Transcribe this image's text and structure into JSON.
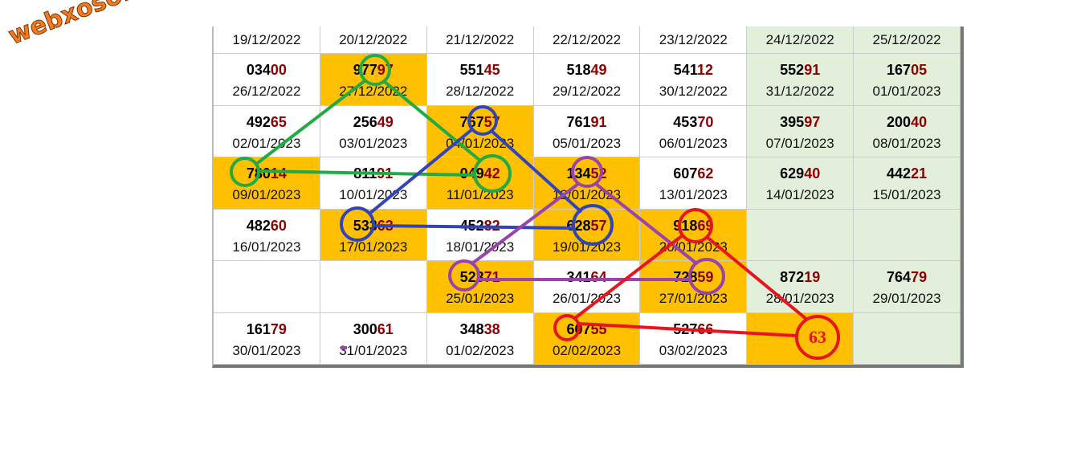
{
  "watermark": "webxoso.net",
  "table": {
    "rows": [
      [
        {
          "date": "19/12/2022"
        },
        {
          "date": "20/12/2022"
        },
        {
          "date": "21/12/2022"
        },
        {
          "date": "22/12/2022"
        },
        {
          "date": "23/12/2022"
        },
        {
          "date": "24/12/2022",
          "fill": "#e2efda"
        },
        {
          "date": "25/12/2022",
          "fill": "#e2efda"
        }
      ],
      [
        {
          "head": "034",
          "tail": "00",
          "date": "26/12/2022"
        },
        {
          "head": "977",
          "tail": "97",
          "date": "27/12/2022",
          "fill": "#ffc000"
        },
        {
          "head": "551",
          "tail": "45",
          "date": "28/12/2022"
        },
        {
          "head": "518",
          "tail": "49",
          "date": "29/12/2022"
        },
        {
          "head": "541",
          "tail": "12",
          "date": "30/12/2022"
        },
        {
          "head": "552",
          "tail": "91",
          "date": "31/12/2022",
          "fill": "#e2efda"
        },
        {
          "head": "167",
          "tail": "05",
          "date": "01/01/2023",
          "fill": "#e2efda"
        }
      ],
      [
        {
          "head": "492",
          "tail": "65",
          "date": "02/01/2023"
        },
        {
          "head": "256",
          "tail": "49",
          "date": "03/01/2023"
        },
        {
          "head": "767",
          "tail": "57",
          "date": "04/01/2023",
          "fill": "#ffc000"
        },
        {
          "head": "761",
          "tail": "91",
          "date": "05/01/2023"
        },
        {
          "head": "453",
          "tail": "70",
          "date": "06/01/2023"
        },
        {
          "head": "395",
          "tail": "97",
          "date": "07/01/2023",
          "fill": "#e2efda"
        },
        {
          "head": "200",
          "tail": "40",
          "date": "08/01/2023",
          "fill": "#e2efda"
        }
      ],
      [
        {
          "head": "780",
          "tail": "14",
          "date": "09/01/2023",
          "fill": "#ffc000"
        },
        {
          "head": "811",
          "tail": "91",
          "date": "10/01/2023"
        },
        {
          "head": "049",
          "tail": "42",
          "date": "11/01/2023",
          "fill": "#ffc000"
        },
        {
          "head": "134",
          "tail": "52",
          "date": "12/01/2023",
          "fill": "#ffc000"
        },
        {
          "head": "607",
          "tail": "62",
          "date": "13/01/2023"
        },
        {
          "head": "629",
          "tail": "40",
          "date": "14/01/2023",
          "fill": "#e2efda"
        },
        {
          "head": "442",
          "tail": "21",
          "date": "15/01/2023",
          "fill": "#e2efda"
        }
      ],
      [
        {
          "head": "482",
          "tail": "60",
          "date": "16/01/2023"
        },
        {
          "head": "533",
          "tail": "63",
          "date": "17/01/2023",
          "fill": "#ffc000"
        },
        {
          "head": "452",
          "tail": "82",
          "date": "18/01/2023"
        },
        {
          "head": "628",
          "tail": "57",
          "date": "19/01/2023",
          "fill": "#ffc000"
        },
        {
          "head": "918",
          "tail": "69",
          "date": "20/01/2023",
          "fill": "#ffc000"
        },
        {
          "fill": "#e2efda"
        },
        {
          "fill": "#e2efda"
        }
      ],
      [
        {},
        {},
        {
          "head": "523",
          "tail": "71",
          "date": "25/01/2023",
          "fill": "#ffc000"
        },
        {
          "head": "341",
          "tail": "64",
          "date": "26/01/2023"
        },
        {
          "head": "728",
          "tail": "59",
          "date": "27/01/2023",
          "fill": "#ffc000"
        },
        {
          "head": "872",
          "tail": "19",
          "date": "28/01/2023",
          "fill": "#e2efda"
        },
        {
          "head": "764",
          "tail": "79",
          "date": "29/01/2023",
          "fill": "#e2efda"
        }
      ],
      [
        {
          "head": "161",
          "tail": "79",
          "date": "30/01/2023"
        },
        {
          "head": "300",
          "tail": "61",
          "date": "31/01/2023"
        },
        {
          "head": "348",
          "tail": "38",
          "date": "01/02/2023"
        },
        {
          "head": "607",
          "tail": "55",
          "date": "02/02/2023",
          "fill": "#ffc000"
        },
        {
          "head": "527",
          "tail": "66",
          "date": "03/02/2023"
        },
        {
          "fill": "#ffc000"
        },
        {
          "fill": "#e2efda"
        }
      ]
    ]
  },
  "highlight": "63"
}
